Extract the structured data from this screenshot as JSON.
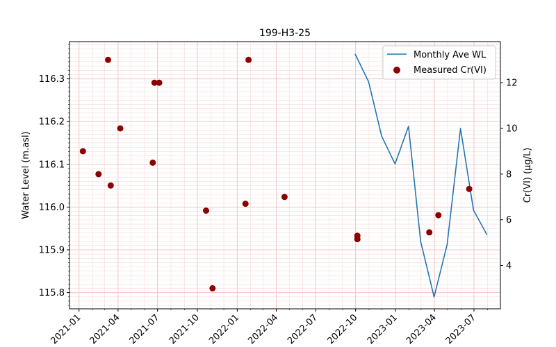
{
  "chart_data": {
    "type": "line",
    "title": "199-H3-25",
    "xlabel": "",
    "ylabel": "Water Level (m.asl)",
    "y2label": "Cr(VI) (µg/L)",
    "xlim": [
      "2020-12-10",
      "2023-08-31"
    ],
    "ylim": [
      115.762,
      116.387
    ],
    "y2lim": [
      2.1,
      13.8
    ],
    "x_ticks": [
      "2021-01",
      "2021-04",
      "2021-07",
      "2021-10",
      "2022-01",
      "2022-04",
      "2022-07",
      "2022-10",
      "2023-01",
      "2023-04",
      "2023-07"
    ],
    "x_tick_dates": [
      "2021-01-01",
      "2021-04-01",
      "2021-07-01",
      "2021-10-01",
      "2022-01-01",
      "2022-04-01",
      "2022-07-01",
      "2022-10-01",
      "2023-01-01",
      "2023-04-01",
      "2023-07-01"
    ],
    "y_ticks": [
      115.8,
      115.9,
      116.0,
      116.1,
      116.2,
      116.3
    ],
    "y_tick_labels": [
      "115.8",
      "115.9",
      "116.0",
      "116.1",
      "116.2",
      "116.3"
    ],
    "y2_ticks": [
      4,
      6,
      8,
      10,
      12
    ],
    "y2_tick_labels": [
      "4",
      "6",
      "8",
      "10",
      "12"
    ],
    "grid": true,
    "legend_position": "top-right",
    "colors": {
      "line": "#1f77b4",
      "marker": "#8b0000",
      "grid": "#f4c6c6"
    },
    "series": [
      {
        "name": "Monthly Ave WL",
        "type": "line",
        "axis": "left",
        "x": [
          "2022-09-30",
          "2022-10-31",
          "2022-11-30",
          "2022-12-31",
          "2023-01-31",
          "2023-02-28",
          "2023-03-31",
          "2023-04-30",
          "2023-05-31",
          "2023-06-30",
          "2023-07-31"
        ],
        "y": [
          116.358,
          116.293,
          116.166,
          116.101,
          116.189,
          115.92,
          115.79,
          115.912,
          116.184,
          115.993,
          115.935
        ]
      },
      {
        "name": "Measured Cr(VI)",
        "type": "scatter",
        "axis": "right",
        "x": [
          "2021-01-10",
          "2021-02-15",
          "2021-03-09",
          "2021-03-15",
          "2021-04-06",
          "2021-06-20",
          "2021-06-24",
          "2021-07-05",
          "2021-10-21",
          "2021-11-05",
          "2022-01-20",
          "2022-01-27",
          "2022-04-20",
          "2022-10-05",
          "2022-10-05",
          "2023-03-20",
          "2023-04-10",
          "2023-06-20"
        ],
        "y": [
          9.0,
          8.0,
          13.0,
          7.5,
          10.0,
          8.5,
          12.0,
          12.0,
          6.4,
          3.0,
          6.7,
          13.0,
          7.0,
          5.3,
          5.15,
          5.45,
          6.2,
          7.35
        ]
      }
    ]
  }
}
